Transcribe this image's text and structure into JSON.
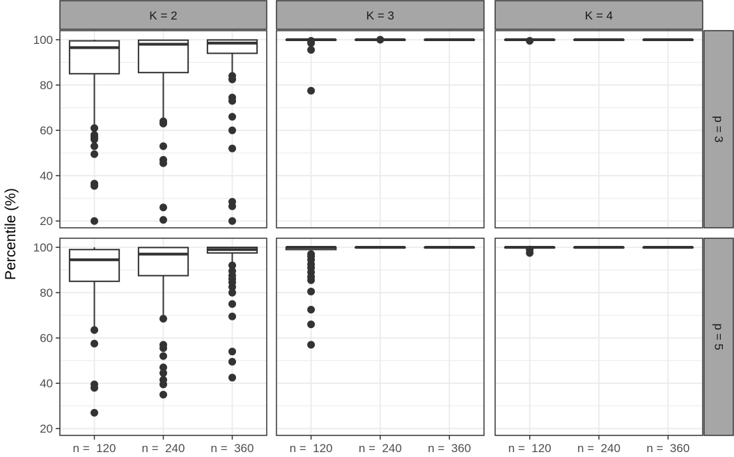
{
  "chart_data": {
    "type": "boxplot",
    "title": "",
    "ylabel": "Percentile (%)",
    "xlabel": "",
    "ylim": [
      17,
      104
    ],
    "yticks": [
      20,
      40,
      60,
      80,
      100
    ],
    "grid": true,
    "categories": [
      "n =  120",
      "n =  240",
      "n =  360"
    ],
    "col_facets": [
      "K =  2",
      "K =  3",
      "K =  4"
    ],
    "row_facets": [
      "p =  3",
      "p =  5"
    ],
    "colors": {
      "strip_fill": "#a6a6a6",
      "outlier": "#333333",
      "box_line": "#333333",
      "grid": "#ebebeb",
      "panel_border": "#333333"
    },
    "panels": [
      {
        "row": 0,
        "col": 0,
        "boxes": [
          {
            "category": "n =  120",
            "min": 61,
            "q1": 85,
            "median": 96.5,
            "q3": 99.5,
            "max": 100,
            "outliers": [
              61,
              58,
              57,
              56,
              53,
              49.5,
              36.5,
              35.5,
              20
            ]
          },
          {
            "category": "n =  240",
            "min": 65,
            "q1": 85.5,
            "median": 98,
            "q3": 99.8,
            "max": 100,
            "outliers": [
              64,
              63,
              53,
              47,
              45.5,
              26,
              20.5
            ]
          },
          {
            "category": "n =  360",
            "min": 84,
            "q1": 94,
            "median": 98.5,
            "q3": 99.9,
            "max": 100,
            "outliers": [
              84,
              82.5,
              74.5,
              73,
              66,
              60,
              52,
              28.5,
              26.5,
              20
            ]
          }
        ]
      },
      {
        "row": 0,
        "col": 1,
        "boxes": [
          {
            "category": "n =  120",
            "min": 100,
            "q1": 100,
            "median": 100,
            "q3": 100,
            "max": 100,
            "outliers": [
              99.5,
              98.5,
              95.5,
              77.5
            ]
          },
          {
            "category": "n =  240",
            "min": 100,
            "q1": 100,
            "median": 100,
            "q3": 100,
            "max": 100,
            "outliers": [
              100
            ]
          },
          {
            "category": "n =  360",
            "min": 100,
            "q1": 100,
            "median": 100,
            "q3": 100,
            "max": 100,
            "outliers": []
          }
        ]
      },
      {
        "row": 0,
        "col": 2,
        "boxes": [
          {
            "category": "n =  120",
            "min": 100,
            "q1": 100,
            "median": 100,
            "q3": 100,
            "max": 100,
            "outliers": [
              99.5
            ]
          },
          {
            "category": "n =  240",
            "min": 100,
            "q1": 100,
            "median": 100,
            "q3": 100,
            "max": 100,
            "outliers": []
          },
          {
            "category": "n =  360",
            "min": 100,
            "q1": 100,
            "median": 100,
            "q3": 100,
            "max": 100,
            "outliers": []
          }
        ]
      },
      {
        "row": 1,
        "col": 0,
        "boxes": [
          {
            "category": "n =  120",
            "min": 64,
            "q1": 85,
            "median": 94.5,
            "q3": 99,
            "max": 100,
            "outliers": [
              63.5,
              57.5,
              39.5,
              38,
              27
            ]
          },
          {
            "category": "n =  240",
            "min": 69,
            "q1": 87.5,
            "median": 97,
            "q3": 99.9,
            "max": 100,
            "outliers": [
              68.5,
              57,
              55.5,
              52,
              47,
              44.5,
              41.5,
              39.5,
              35
            ]
          },
          {
            "category": "n =  360",
            "min": 92.5,
            "q1": 97.5,
            "median": 99,
            "q3": 100,
            "max": 100,
            "outliers": [
              92,
              89.5,
              87.5,
              86,
              84.5,
              82.5,
              80,
              75,
              69.5,
              54,
              49.5,
              42.5
            ]
          }
        ]
      },
      {
        "row": 1,
        "col": 1,
        "boxes": [
          {
            "category": "n =  120",
            "min": 99,
            "q1": 99,
            "median": 100,
            "q3": 100,
            "max": 100,
            "outliers": [
              97,
              96,
              94.5,
              92.5,
              91,
              89,
              87,
              85.5,
              80.5,
              72.5,
              66,
              57
            ]
          },
          {
            "category": "n =  240",
            "min": 100,
            "q1": 100,
            "median": 100,
            "q3": 100,
            "max": 100,
            "outliers": []
          },
          {
            "category": "n =  360",
            "min": 100,
            "q1": 100,
            "median": 100,
            "q3": 100,
            "max": 100,
            "outliers": []
          }
        ]
      },
      {
        "row": 1,
        "col": 2,
        "boxes": [
          {
            "category": "n =  120",
            "min": 100,
            "q1": 100,
            "median": 100,
            "q3": 100,
            "max": 100,
            "outliers": [
              99,
              97.5
            ]
          },
          {
            "category": "n =  240",
            "min": 100,
            "q1": 100,
            "median": 100,
            "q3": 100,
            "max": 100,
            "outliers": []
          },
          {
            "category": "n =  360",
            "min": 100,
            "q1": 100,
            "median": 100,
            "q3": 100,
            "max": 100,
            "outliers": []
          }
        ]
      }
    ]
  }
}
